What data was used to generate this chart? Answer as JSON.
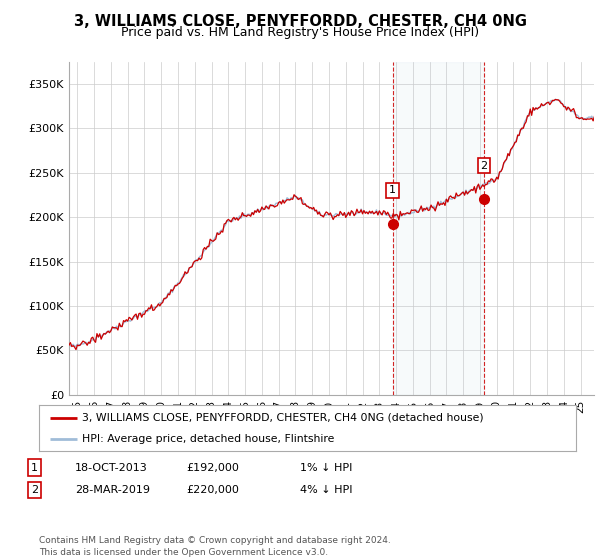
{
  "title": "3, WILLIAMS CLOSE, PENYFFORDD, CHESTER, CH4 0NG",
  "subtitle": "Price paid vs. HM Land Registry's House Price Index (HPI)",
  "ylabel_ticks": [
    "£0",
    "£50K",
    "£100K",
    "£150K",
    "£200K",
    "£250K",
    "£300K",
    "£350K"
  ],
  "ylim": [
    0,
    370000
  ],
  "xlim_start": 1994.5,
  "xlim_end": 2025.8,
  "hpi_color": "#a0bcd8",
  "price_color": "#cc0000",
  "marker_color": "#cc0000",
  "sale1_x": 2013.8,
  "sale1_y": 192000,
  "sale1_label": "1",
  "sale2_x": 2019.25,
  "sale2_y": 220000,
  "sale2_label": "2",
  "vline1_x": 2013.8,
  "vline2_x": 2019.25,
  "vband_x1": 2013.8,
  "vband_x2": 2019.25,
  "legend_line1": "3, WILLIAMS CLOSE, PENYFFORDD, CHESTER, CH4 0NG (detached house)",
  "legend_line2": "HPI: Average price, detached house, Flintshire",
  "table_row1": [
    "1",
    "18-OCT-2013",
    "£192,000",
    "1% ↓ HPI"
  ],
  "table_row2": [
    "2",
    "28-MAR-2019",
    "£220,000",
    "4% ↓ HPI"
  ],
  "footer": "Contains HM Land Registry data © Crown copyright and database right 2024.\nThis data is licensed under the Open Government Licence v3.0.",
  "background_color": "#ffffff",
  "grid_color": "#cccccc"
}
